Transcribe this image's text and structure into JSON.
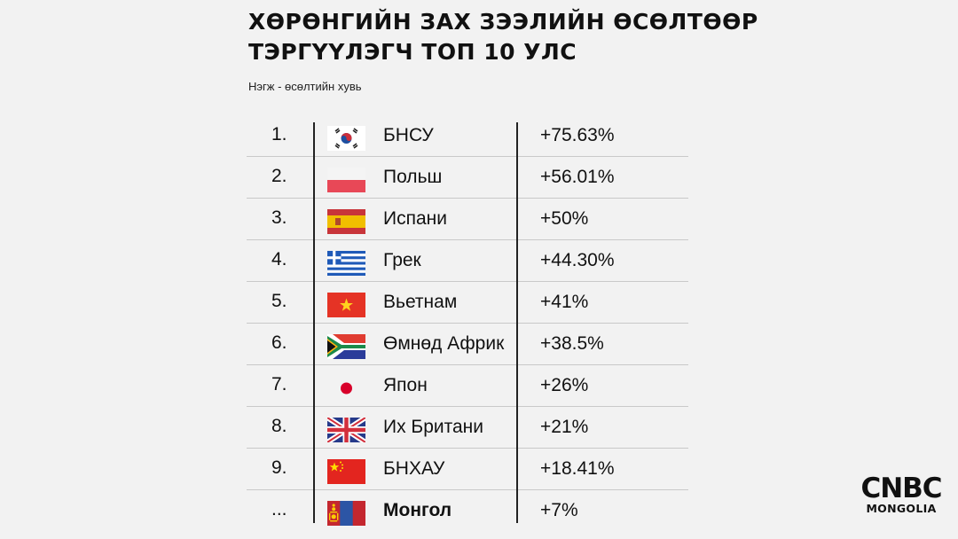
{
  "title_line1": "ХӨРӨНГИЙН ЗАХ ЗЭЭЛИЙН ӨСӨЛТӨӨР",
  "title_line2": "ТЭРГҮҮЛЭГЧ ТОП 10 УЛС",
  "subtitle": "Нэгж - өсөлтийн хувь",
  "chart_data": {
    "type": "table",
    "columns": [
      "rank",
      "flag",
      "country",
      "growth"
    ],
    "rows": [
      {
        "rank": "1.",
        "flag": "south-korea-flag",
        "country": "БНСУ",
        "value_text": "+75.63%",
        "value": 75.63
      },
      {
        "rank": "2.",
        "flag": "poland-flag",
        "country": "Польш",
        "value_text": "+56.01%",
        "value": 56.01
      },
      {
        "rank": "3.",
        "flag": "spain-flag",
        "country": "Испани",
        "value_text": "+50%",
        "value": 50
      },
      {
        "rank": "4.",
        "flag": "greece-flag",
        "country": "Грек",
        "value_text": "+44.30%",
        "value": 44.3
      },
      {
        "rank": "5.",
        "flag": "vietnam-flag",
        "country": "Вьетнам",
        "value_text": "+41%",
        "value": 41
      },
      {
        "rank": "6.",
        "flag": "south-africa-flag",
        "country": "Өмнөд Африк",
        "value_text": "+38.5%",
        "value": 38.5
      },
      {
        "rank": "7.",
        "flag": "japan-flag",
        "country": "Япон",
        "value_text": "+26%",
        "value": 26
      },
      {
        "rank": "8.",
        "flag": "united-kingdom-flag",
        "country": "Их Британи",
        "value_text": "+21%",
        "value": 21
      },
      {
        "rank": "9.",
        "flag": "china-flag",
        "country": "БНХАУ",
        "value_text": "+18.41%",
        "value": 18.41
      },
      {
        "rank": "...",
        "flag": "mongolia-flag",
        "country": "Монгол",
        "value_text": "+7%",
        "value": 7,
        "highlight": true
      }
    ]
  },
  "logo": {
    "main": "CNBC",
    "sub": "MONGOLIA"
  }
}
